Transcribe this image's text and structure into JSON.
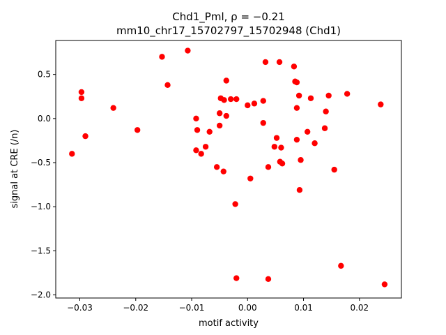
{
  "chart_data": {
    "type": "scatter",
    "title_line1": "Chd1_Pml, ρ = −0.21",
    "title_line2": "mm10_chr17_15702797_15702948 (Chd1)",
    "xlabel": "motif activity",
    "ylabel": "signal at CRE (/n)",
    "xlim": [
      -0.0343,
      0.0275
    ],
    "ylim": [
      -2.035,
      0.885
    ],
    "xticks": [
      -0.03,
      -0.02,
      -0.01,
      0.0,
      0.01,
      0.02
    ],
    "xtick_labels": [
      "−0.03",
      "−0.02",
      "−0.01",
      "0.00",
      "0.01",
      "0.02"
    ],
    "yticks": [
      -2.0,
      -1.5,
      -1.0,
      -0.5,
      0.0,
      0.5
    ],
    "ytick_labels": [
      "−2.0",
      "−1.5",
      "−1.0",
      "−0.5",
      "0.0",
      "0.5"
    ],
    "grid": false,
    "marker_color": "#ff0000",
    "points": [
      {
        "x": -0.0314,
        "y": -0.4
      },
      {
        "x": -0.0297,
        "y": 0.3
      },
      {
        "x": -0.0297,
        "y": 0.23
      },
      {
        "x": -0.029,
        "y": -0.2
      },
      {
        "x": -0.024,
        "y": 0.12
      },
      {
        "x": -0.0197,
        "y": -0.13
      },
      {
        "x": -0.0153,
        "y": 0.7
      },
      {
        "x": -0.0143,
        "y": 0.38
      },
      {
        "x": -0.0107,
        "y": 0.77
      },
      {
        "x": -0.0092,
        "y": 0.0
      },
      {
        "x": -0.009,
        "y": -0.13
      },
      {
        "x": -0.0092,
        "y": -0.36
      },
      {
        "x": -0.0083,
        "y": -0.4
      },
      {
        "x": -0.0075,
        "y": -0.32
      },
      {
        "x": -0.0068,
        "y": -0.15
      },
      {
        "x": -0.0055,
        "y": -0.55
      },
      {
        "x": -0.005,
        "y": 0.06
      },
      {
        "x": -0.005,
        "y": -0.08
      },
      {
        "x": -0.0048,
        "y": 0.23
      },
      {
        "x": -0.0042,
        "y": 0.21
      },
      {
        "x": -0.0043,
        "y": -0.6
      },
      {
        "x": -0.0038,
        "y": 0.43
      },
      {
        "x": -0.0038,
        "y": 0.03
      },
      {
        "x": -0.003,
        "y": 0.22
      },
      {
        "x": -0.002,
        "y": 0.22
      },
      {
        "x": -0.0022,
        "y": -0.97
      },
      {
        "x": -0.002,
        "y": -1.81
      },
      {
        "x": 0.0,
        "y": 0.15
      },
      {
        "x": 0.0005,
        "y": -0.68
      },
      {
        "x": 0.0012,
        "y": 0.17
      },
      {
        "x": 0.0028,
        "y": 0.2
      },
      {
        "x": 0.0028,
        "y": -0.05
      },
      {
        "x": 0.0032,
        "y": 0.64
      },
      {
        "x": 0.0037,
        "y": -0.55
      },
      {
        "x": 0.0037,
        "y": -1.82
      },
      {
        "x": 0.0048,
        "y": -0.32
      },
      {
        "x": 0.0052,
        "y": -0.22
      },
      {
        "x": 0.0057,
        "y": 0.64
      },
      {
        "x": 0.0058,
        "y": -0.49
      },
      {
        "x": 0.006,
        "y": -0.33
      },
      {
        "x": 0.0062,
        "y": -0.51
      },
      {
        "x": 0.0083,
        "y": 0.59
      },
      {
        "x": 0.0085,
        "y": 0.42
      },
      {
        "x": 0.0088,
        "y": 0.41
      },
      {
        "x": 0.0088,
        "y": 0.12
      },
      {
        "x": 0.0088,
        "y": -0.24
      },
      {
        "x": 0.0092,
        "y": 0.26
      },
      {
        "x": 0.0093,
        "y": -0.81
      },
      {
        "x": 0.0095,
        "y": -0.47
      },
      {
        "x": 0.0107,
        "y": -0.15
      },
      {
        "x": 0.0113,
        "y": 0.23
      },
      {
        "x": 0.012,
        "y": -0.28
      },
      {
        "x": 0.0138,
        "y": -0.11
      },
      {
        "x": 0.014,
        "y": 0.08
      },
      {
        "x": 0.0145,
        "y": 0.26
      },
      {
        "x": 0.0155,
        "y": -0.58
      },
      {
        "x": 0.0167,
        "y": -1.67
      },
      {
        "x": 0.0178,
        "y": 0.28
      },
      {
        "x": 0.0238,
        "y": 0.16
      },
      {
        "x": 0.0245,
        "y": -1.88
      }
    ]
  }
}
